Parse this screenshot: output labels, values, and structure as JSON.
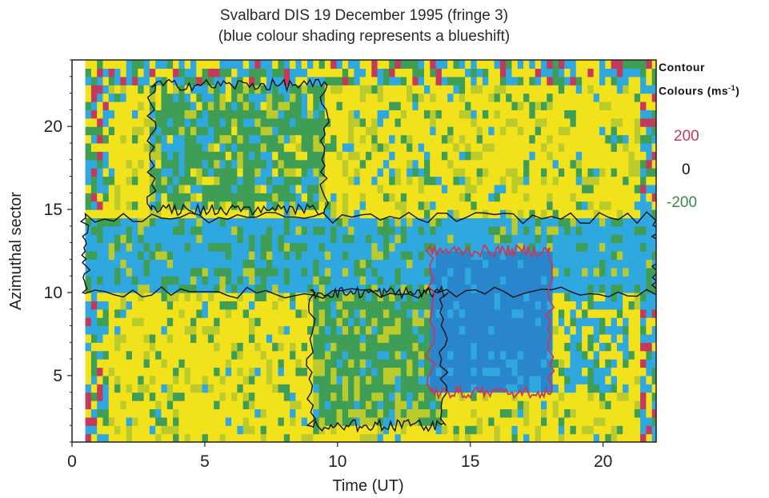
{
  "chart_data": {
    "type": "heatmap",
    "title": "Svalbard DIS 19 December 1995 (fringe 3)",
    "subtitle": "(blue colour shading represents a blueshift)",
    "xlabel": "Time (UT)",
    "ylabel": "Azimuthal sector",
    "xlim": [
      0,
      22
    ],
    "ylim": [
      1,
      24
    ],
    "x_ticks": [
      0,
      5,
      10,
      15,
      20
    ],
    "y_ticks": [
      5,
      10,
      15,
      20
    ],
    "data_x_range": [
      0.5,
      22
    ],
    "legend": {
      "heading_1": "Contour",
      "heading_2_text": "Colours (ms",
      "heading_2_sup": "-1",
      "heading_2_close": ")",
      "placement": "right",
      "items": [
        {
          "value": "200",
          "color": "#c43a5c"
        },
        {
          "value": "0",
          "color": "#111111"
        },
        {
          "value": "-200",
          "color": "#3a8a46"
        }
      ]
    },
    "shading_colors": {
      "yellow": "#f2e21c",
      "yellow_green": "#bccb2c",
      "green": "#3f9e56",
      "cyan": "#2fa8df",
      "blue": "#2a86cc",
      "red": "#c43a5c"
    },
    "regions": [
      {
        "name": "blueshift-band",
        "t_start": 0.5,
        "t_end": 22,
        "sector_start": 10,
        "sector_end": 14.5,
        "color": "cyan"
      },
      {
        "name": "strong-blueshift",
        "t_start": 13.5,
        "t_end": 18,
        "sector_start": 4,
        "sector_end": 12.5,
        "color": "blue"
      },
      {
        "name": "upper-green",
        "t_start": 3,
        "t_end": 9.5,
        "sector_start": 15,
        "sector_end": 22.5,
        "color": "green"
      },
      {
        "name": "lower-green",
        "t_start": 9,
        "t_end": 14,
        "sector_start": 2,
        "sector_end": 10,
        "color": "green"
      }
    ]
  }
}
